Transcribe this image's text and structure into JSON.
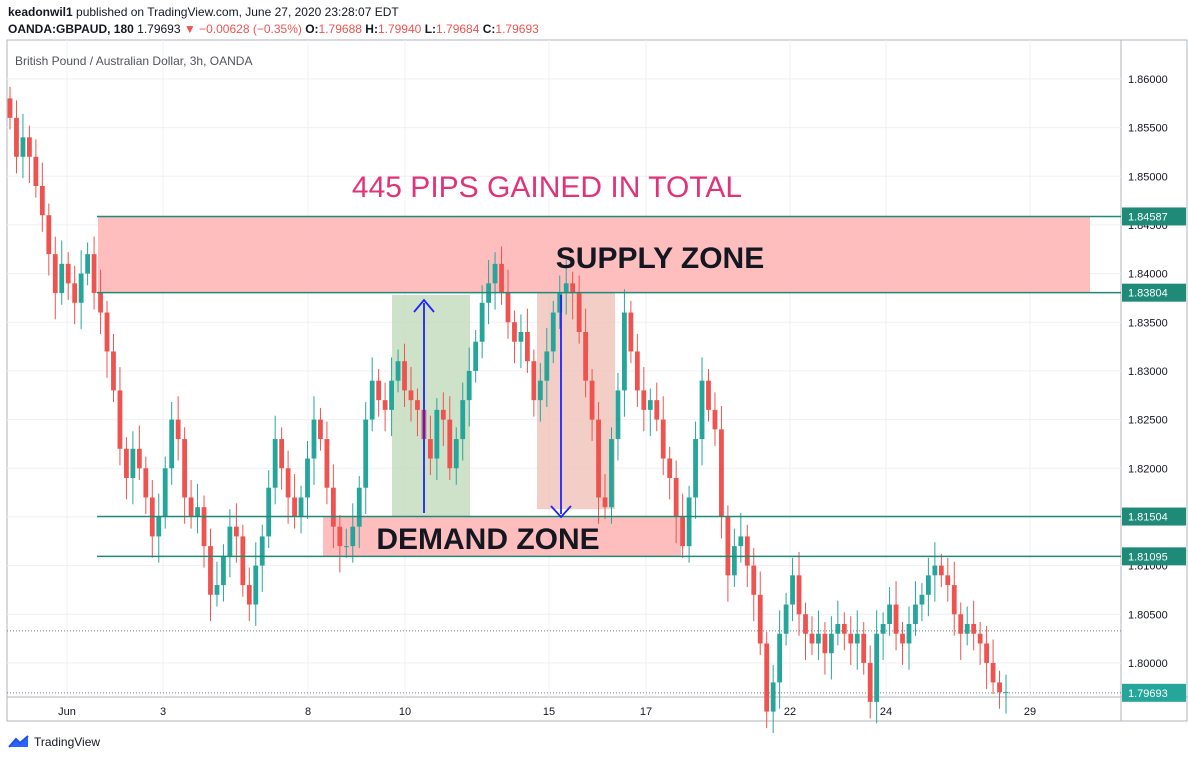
{
  "header": {
    "publisher": "keadonwil1",
    "published_text": "published on TradingView.com, June 27, 2020 23:28:07 EDT",
    "symbol": "OANDA:GBPAUD, 180",
    "last": "1.79693",
    "change": "−0.00628 (−0.35%)",
    "o_label": "O:",
    "o": "1.79688",
    "h_label": "H:",
    "h": "1.79940",
    "l_label": "L:",
    "l": "1.79684",
    "c_label": "C:",
    "c": "1.79693"
  },
  "footer": {
    "brand": "TradingView"
  },
  "colors": {
    "up": "#26a69a",
    "down": "#ef5350",
    "zone": "#ffb3b3",
    "level_line": "#1f8a78",
    "magenta": "#e2337a",
    "buy_box": "#c6dcbf",
    "sell_box": "#efc2b9",
    "arrow": "#1f23ff"
  },
  "chart_data": {
    "type": "candlestick",
    "title": "British Pound / Australian Dollar, 3h, OANDA",
    "ylim": [
      1.7965,
      1.864
    ],
    "y_ticks": [
      "1.86000",
      "1.85500",
      "1.85000",
      "1.84500",
      "1.84000",
      "1.83500",
      "1.83000",
      "1.82500",
      "1.82000",
      "1.81500",
      "1.81000",
      "1.80500",
      "1.80000"
    ],
    "x_ticks": [
      "Jun",
      "3",
      "8",
      "10",
      "15",
      "17",
      "22",
      "24",
      "29"
    ],
    "levels": [
      {
        "value": 1.84587,
        "label": "1.84587"
      },
      {
        "value": 1.83804,
        "label": "1.83804"
      },
      {
        "value": 1.81504,
        "label": "1.81504"
      },
      {
        "value": 1.81095,
        "label": "1.81095"
      }
    ],
    "last_price": {
      "value": 1.79693,
      "label": "1.79693"
    },
    "dotted_levels": [
      1.8033,
      1.79693
    ],
    "annotations": {
      "headline": "445 PIPS GAINED IN TOTAL",
      "supply": "SUPPLY ZONE",
      "demand": "DEMAND ZONE"
    },
    "closes": [
      1.856,
      1.852,
      1.854,
      1.852,
      1.849,
      1.846,
      1.842,
      1.838,
      1.841,
      1.839,
      1.837,
      1.84,
      1.842,
      1.838,
      1.836,
      1.832,
      1.828,
      1.822,
      1.819,
      1.822,
      1.82,
      1.817,
      1.813,
      1.815,
      1.82,
      1.825,
      1.823,
      1.817,
      1.815,
      1.816,
      1.812,
      1.807,
      1.808,
      1.811,
      1.814,
      1.813,
      1.808,
      1.806,
      1.81,
      1.813,
      1.818,
      1.823,
      1.82,
      1.817,
      1.815,
      1.817,
      1.821,
      1.825,
      1.823,
      1.818,
      1.814,
      1.812,
      1.812,
      1.814,
      1.818,
      1.825,
      1.829,
      1.827,
      1.826,
      1.829,
      1.831,
      1.828,
      1.827,
      1.826,
      1.823,
      1.821,
      1.826,
      1.825,
      1.82,
      1.823,
      1.827,
      1.83,
      1.833,
      1.837,
      1.839,
      1.841,
      1.838,
      1.835,
      1.833,
      1.834,
      1.831,
      1.827,
      1.829,
      1.832,
      1.836,
      1.838,
      1.839,
      1.838,
      1.834,
      1.829,
      1.825,
      1.817,
      1.816,
      1.823,
      1.828,
      1.836,
      1.832,
      1.828,
      1.826,
      1.827,
      1.825,
      1.821,
      1.819,
      1.815,
      1.812,
      1.817,
      1.823,
      1.829,
      1.826,
      1.824,
      1.815,
      1.809,
      1.812,
      1.813,
      1.81,
      1.807,
      1.802,
      1.795,
      1.798,
      1.803,
      1.806,
      1.809,
      1.805,
      1.803,
      1.802,
      1.803,
      1.801,
      1.803,
      1.804,
      1.803,
      1.802,
      1.803,
      1.8,
      1.796,
      1.803,
      1.804,
      1.806,
      1.803,
      1.802,
      1.804,
      1.806,
      1.807,
      1.809,
      1.81,
      1.809,
      1.808,
      1.805,
      1.803,
      1.804,
      1.803,
      1.802,
      1.8,
      1.798,
      1.797,
      1.797
    ]
  }
}
